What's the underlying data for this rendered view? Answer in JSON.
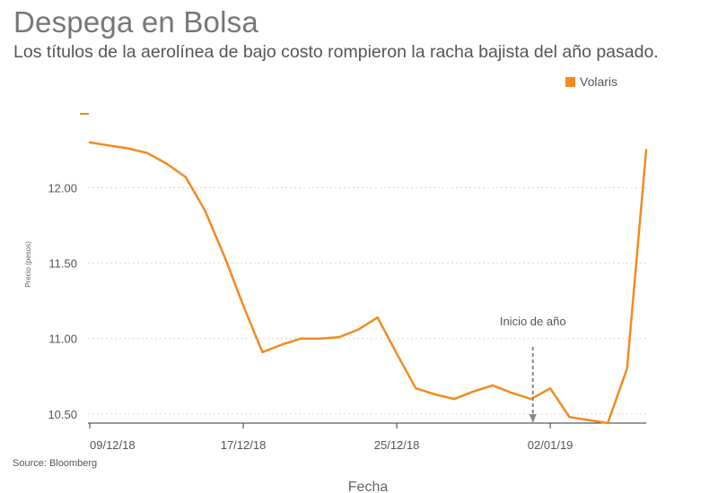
{
  "title": "Despega en Bolsa",
  "subtitle": "Los títulos de la aerolínea de bajo costo rompieron la racha bajista del año pasado.",
  "source": "Source: Bloomberg",
  "chart_data": {
    "type": "line",
    "xlabel": "Fecha",
    "ylabel": "Precio (pesos)",
    "ylim": [
      10.44,
      12.65
    ],
    "y_ticks": [
      10.5,
      11.0,
      11.5,
      12.0
    ],
    "y_tick_labels": [
      "10.50",
      "11.00",
      "11.50",
      "12.00"
    ],
    "x_ticks": [
      "2018-12-09",
      "2018-12-17",
      "2018-12-25",
      "2019-01-02"
    ],
    "x_tick_labels": [
      "09/12/18",
      "17/12/18",
      "25/12/18",
      "02/01/19"
    ],
    "grid": true,
    "legend_position": "top-right",
    "series": [
      {
        "name": "Volaris",
        "color": "#f28a20",
        "x": [
          "2018-12-09",
          "2018-12-10",
          "2018-12-11",
          "2018-12-12",
          "2018-12-13",
          "2018-12-14",
          "2018-12-15",
          "2018-12-16",
          "2018-12-17",
          "2018-12-18",
          "2018-12-19",
          "2018-12-20",
          "2018-12-21",
          "2018-12-22",
          "2018-12-23",
          "2018-12-24",
          "2018-12-25",
          "2018-12-26",
          "2018-12-27",
          "2018-12-28",
          "2018-12-29",
          "2018-12-30",
          "2018-12-31",
          "2019-01-01",
          "2019-01-02",
          "2019-01-03",
          "2019-01-04",
          "2019-01-05",
          "2019-01-06",
          "2019-01-07"
        ],
        "values": [
          12.3,
          12.28,
          12.26,
          12.23,
          12.16,
          12.07,
          11.85,
          11.55,
          11.22,
          10.91,
          10.96,
          11.0,
          11.0,
          11.01,
          11.06,
          11.14,
          10.9,
          10.67,
          10.63,
          10.6,
          10.65,
          10.69,
          10.64,
          10.6,
          10.67,
          10.48,
          10.46,
          10.44,
          10.8,
          12.25
        ]
      }
    ],
    "annotations": [
      {
        "text": "Inicio de año",
        "x": "2019-01-01",
        "y": 10.44
      }
    ]
  }
}
